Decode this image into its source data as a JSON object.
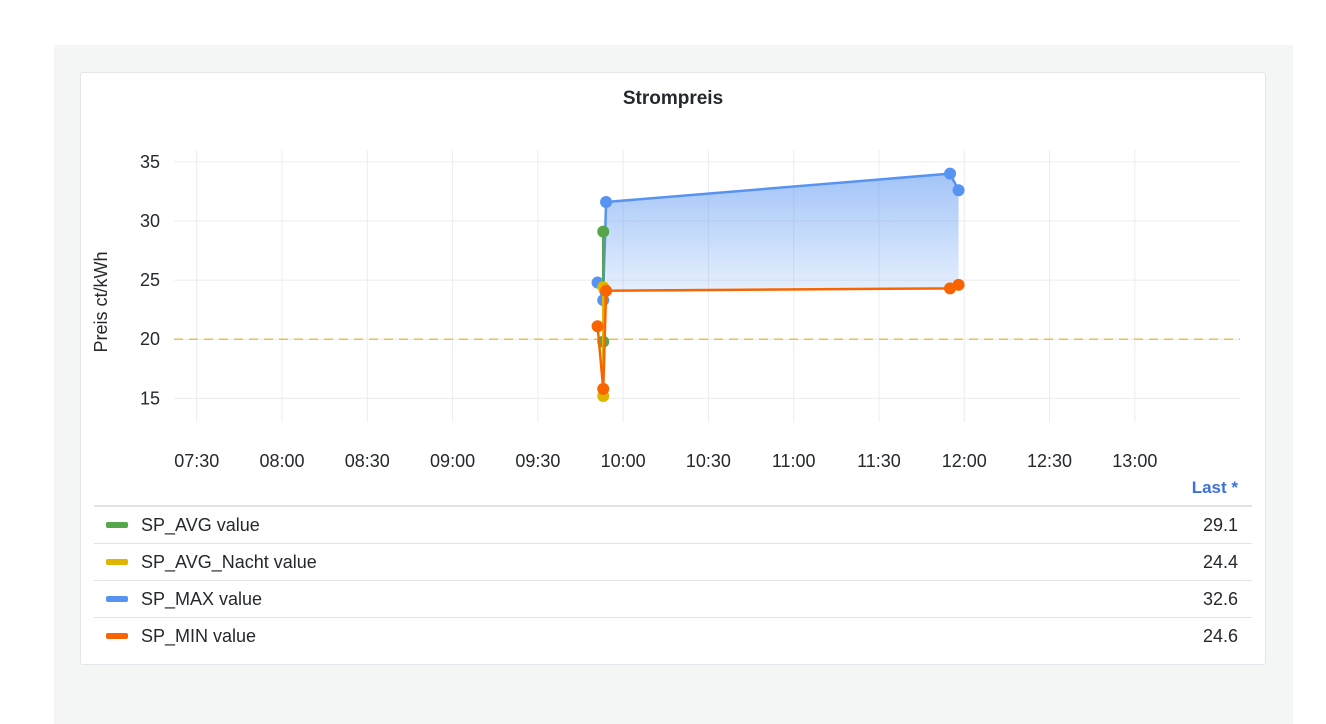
{
  "panel": {
    "title": "Strompreis"
  },
  "chart_data": {
    "type": "line",
    "title": "Strompreis",
    "ylabel": "Preis ct/kWh",
    "xlabel": "",
    "x_ticks": [
      "07:30",
      "08:00",
      "08:30",
      "09:00",
      "09:30",
      "10:00",
      "10:30",
      "11:00",
      "11:30",
      "12:00",
      "12:30",
      "13:00"
    ],
    "xlim": [
      "07:22",
      "13:37"
    ],
    "ylim": [
      13,
      36
    ],
    "y_ticks": [
      15,
      20,
      25,
      30,
      35
    ],
    "grid": true,
    "threshold": {
      "value": 20,
      "color": "#eab839",
      "style": "dashed"
    },
    "series": [
      {
        "name": "SP_AVG value",
        "color": "#56a64b",
        "fill": false,
        "points": [
          {
            "x": "09:53",
            "y": 29.1
          },
          {
            "x": "09:53",
            "y": 19.8
          }
        ]
      },
      {
        "name": "SP_AVG_Nacht value",
        "color": "#e0b400",
        "fill": false,
        "points": [
          {
            "x": "09:53",
            "y": 24.4
          },
          {
            "x": "09:53",
            "y": 15.2
          }
        ]
      },
      {
        "name": "SP_MAX value",
        "color": "#5794f2",
        "fill": true,
        "points": [
          {
            "x": "09:51",
            "y": 24.8
          },
          {
            "x": "09:53",
            "y": 23.3
          },
          {
            "x": "09:54",
            "y": 31.6
          },
          {
            "x": "11:55",
            "y": 34.0
          },
          {
            "x": "11:58",
            "y": 32.6
          }
        ]
      },
      {
        "name": "SP_MIN value",
        "color": "#fa6400",
        "fill": false,
        "points": [
          {
            "x": "09:51",
            "y": 21.1
          },
          {
            "x": "09:53",
            "y": 15.8
          },
          {
            "x": "09:54",
            "y": 24.1
          },
          {
            "x": "11:55",
            "y": 24.3
          },
          {
            "x": "11:58",
            "y": 24.6
          }
        ]
      }
    ]
  },
  "legend": {
    "header": "Last *",
    "items": [
      {
        "name": "SP_AVG value",
        "value": "29.1",
        "color": "#56a64b"
      },
      {
        "name": "SP_AVG_Nacht value",
        "value": "24.4",
        "color": "#e0b400"
      },
      {
        "name": "SP_MAX value",
        "value": "32.6",
        "color": "#5794f2"
      },
      {
        "name": "SP_MIN value",
        "value": "24.6",
        "color": "#fa6400"
      }
    ]
  }
}
